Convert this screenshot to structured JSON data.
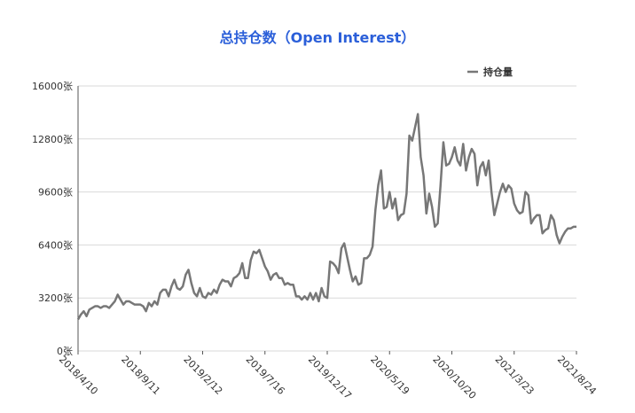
{
  "chart_data": {
    "type": "line",
    "title": "总持仓数（Open Interest）",
    "categories": [
      "2018/4/10",
      null,
      null,
      null,
      null,
      null,
      null,
      null,
      null,
      null,
      null,
      null,
      null,
      null,
      null,
      null,
      null,
      null,
      null,
      null,
      null,
      null,
      "2018/9/11",
      null,
      null,
      null,
      null,
      null,
      null,
      null,
      null,
      null,
      null,
      null,
      null,
      null,
      null,
      null,
      null,
      null,
      null,
      null,
      null,
      null,
      "2019/2/12",
      null,
      null,
      null,
      null,
      null,
      null,
      null,
      null,
      null,
      null,
      null,
      null,
      null,
      null,
      null,
      null,
      null,
      null,
      null,
      null,
      null,
      "2019/7/16",
      null,
      null,
      null,
      null,
      null,
      null,
      null,
      null,
      null,
      null,
      null,
      null,
      null,
      null,
      null,
      null,
      null,
      null,
      null,
      null,
      null,
      "2019/12/17",
      null,
      null,
      null,
      null,
      null,
      null,
      null,
      null,
      null,
      null,
      null,
      null,
      null,
      null,
      null,
      null,
      null,
      null,
      null,
      null,
      null,
      "2020/5/19",
      null,
      null,
      null,
      null,
      null,
      null,
      null,
      null,
      null,
      null,
      null,
      null,
      null,
      null,
      null,
      null,
      null,
      null,
      null,
      null,
      null,
      "2020/10/20",
      null,
      null,
      null,
      null,
      null,
      null,
      null,
      null,
      null,
      null,
      null,
      null,
      null,
      null,
      null,
      null,
      null,
      null,
      null,
      null,
      null,
      "2021/3/23",
      null,
      null,
      null,
      null,
      null,
      null,
      null,
      null,
      null,
      null,
      null,
      null,
      null,
      null,
      null,
      null,
      null,
      null,
      null,
      null,
      null,
      "2021/8/24"
    ],
    "series": [
      {
        "name": "持仓量",
        "color": "#777777",
        "values": [
          1900,
          2200,
          2400,
          2100,
          2500,
          2600,
          2700,
          2700,
          2600,
          2700,
          2700,
          2600,
          2800,
          3000,
          3400,
          3100,
          2800,
          3000,
          3000,
          2900,
          2800,
          2800,
          2800,
          2700,
          2400,
          2900,
          2700,
          3000,
          2800,
          3500,
          3700,
          3700,
          3300,
          3900,
          4300,
          3800,
          3700,
          3900,
          4600,
          4900,
          4100,
          3500,
          3300,
          3800,
          3300,
          3200,
          3500,
          3400,
          3700,
          3500,
          4000,
          4300,
          4200,
          4200,
          3900,
          4400,
          4500,
          4700,
          5300,
          4400,
          4400,
          5500,
          6000,
          5900,
          6100,
          5600,
          5100,
          4800,
          4300,
          4600,
          4700,
          4400,
          4400,
          4000,
          4100,
          4000,
          4000,
          3300,
          3300,
          3100,
          3300,
          3100,
          3500,
          3100,
          3500,
          3000,
          3800,
          3300,
          3200,
          5400,
          5300,
          5100,
          4700,
          6200,
          6500,
          5700,
          4900,
          4200,
          4500,
          4000,
          4100,
          5600,
          5600,
          5800,
          6300,
          8500,
          10000,
          10900,
          8600,
          8700,
          9600,
          8600,
          9200,
          7900,
          8200,
          8300,
          9500,
          13000,
          12700,
          13500,
          14300,
          11700,
          10600,
          8300,
          9500,
          8700,
          7500,
          7700,
          10000,
          12600,
          11200,
          11300,
          11700,
          12300,
          11500,
          11200,
          12500,
          10900,
          11700,
          12200,
          11900,
          10000,
          11100,
          11400,
          10600,
          11500,
          9600,
          8200,
          8900,
          9600,
          10100,
          9600,
          10000,
          9800,
          8900,
          8500,
          8300,
          8400,
          9600,
          9400,
          7700,
          8000,
          8200,
          8200,
          7100,
          7300,
          7400,
          8200,
          7900,
          7000,
          6500,
          6900,
          7200,
          7400,
          7400,
          7500,
          7500
        ]
      }
    ],
    "ylim": [
      0,
      16000
    ],
    "yticks": [
      {
        "value": 0,
        "label": "0张"
      },
      {
        "value": 3200,
        "label": "3200张"
      },
      {
        "value": 6400,
        "label": "6400张"
      },
      {
        "value": 9600,
        "label": "9600张"
      },
      {
        "value": 12800,
        "label": "12800张"
      },
      {
        "value": 16000,
        "label": "16000张"
      }
    ],
    "grid": true,
    "legend": "top-right"
  }
}
